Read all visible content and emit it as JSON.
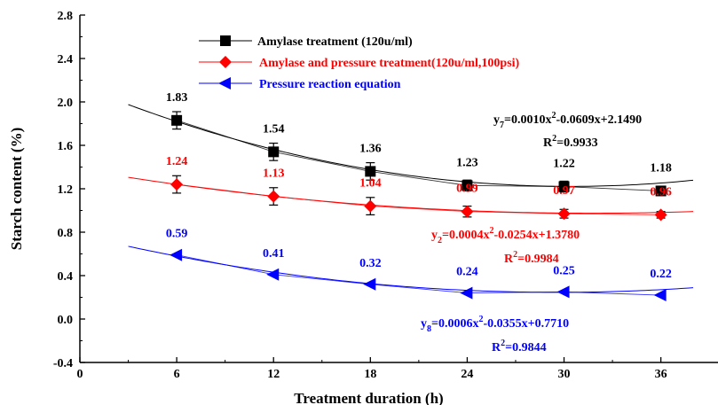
{
  "chart_data": {
    "type": "scatter",
    "xlabel": "Treatment duration (h)",
    "ylabel": "Starch content (%)",
    "xlim": [
      0,
      38
    ],
    "ylim": [
      -0.4,
      2.8
    ],
    "xticks": [
      0,
      6,
      12,
      18,
      24,
      30,
      36
    ],
    "xtick_labels": [
      "0",
      "6",
      "12",
      "18",
      "24",
      "30",
      "36"
    ],
    "yticks": [
      -0.4,
      0.0,
      0.4,
      0.8,
      1.2,
      1.6,
      2.0,
      2.4,
      2.8
    ],
    "ytick_labels": [
      "-0.4",
      "0.0",
      "0.4",
      "0.8",
      "1.2",
      "1.6",
      "2.0",
      "2.4",
      "2.8"
    ],
    "grid": false,
    "legend_position": "top-left",
    "x": [
      6,
      12,
      18,
      24,
      30,
      36
    ],
    "series": [
      {
        "name": "Amylase treatment (120u/ml)",
        "color": "#000000",
        "marker": "square",
        "values": [
          1.83,
          1.54,
          1.36,
          1.23,
          1.22,
          1.18
        ],
        "labels": [
          "1.83",
          "1.54",
          "1.36",
          "1.23",
          "1.22",
          "1.18"
        ],
        "errors": [
          0.08,
          0.08,
          0.08,
          0.05,
          0.05,
          0.04
        ],
        "fit": {
          "a": 0.001,
          "b": -0.0609,
          "c": 2.149
        },
        "equation_prefix": "y",
        "equation_sub": "7",
        "equation_body": "=0.0010x",
        "equation_sup": "2",
        "equation_tail": "-0.0609x+2.1490",
        "r2_prefix": "R",
        "r2_sup": "2",
        "r2_tail": "=0.9933"
      },
      {
        "name": "Amylase and pressure treatment(120u/ml,100psi)",
        "color": "#ff0000",
        "marker": "diamond",
        "values": [
          1.24,
          1.13,
          1.04,
          0.99,
          0.97,
          0.96
        ],
        "labels": [
          "1.24",
          "1.13",
          "1.04",
          "0.99",
          "0.97",
          "0.96"
        ],
        "errors": [
          0.08,
          0.08,
          0.08,
          0.05,
          0.04,
          0.03
        ],
        "fit": {
          "a": 0.0004,
          "b": -0.0254,
          "c": 1.378
        },
        "equation_prefix": "y",
        "equation_sub": "2",
        "equation_body": "=0.0004x",
        "equation_sup": "2",
        "equation_tail": "-0.0254x+1.3780",
        "r2_prefix": "R",
        "r2_sup": "2",
        "r2_tail": "=0.9984"
      },
      {
        "name": "Pressure reaction equation",
        "color": "#0000ff",
        "marker": "triangle-left",
        "values": [
          0.59,
          0.41,
          0.32,
          0.24,
          0.25,
          0.22
        ],
        "labels": [
          "0.59",
          "0.41",
          "0.32",
          "0.24",
          "0.25",
          "0.22"
        ],
        "errors": [
          0,
          0,
          0,
          0,
          0,
          0
        ],
        "fit": {
          "a": 0.0006,
          "b": -0.0355,
          "c": 0.771
        },
        "equation_prefix": "y",
        "equation_sub": "8",
        "equation_body": "=0.0006x",
        "equation_sup": "2",
        "equation_tail": "-0.0355x+0.7710",
        "r2_prefix": "R",
        "r2_sup": "2",
        "r2_tail": "=0.9844"
      }
    ]
  }
}
